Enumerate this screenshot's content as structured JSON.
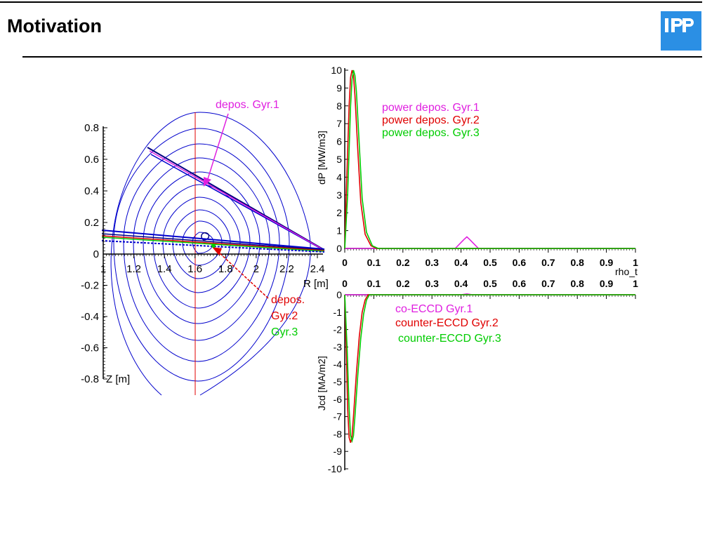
{
  "slide": {
    "title": "Motivation",
    "logo_text": "IPP",
    "accent_color": "#2b8fe4"
  },
  "chart_data": [
    {
      "type": "line",
      "panel": "cross-section",
      "xlabel": "R [m]",
      "ylabel": "Z [m]",
      "xlim": [
        1,
        2.4
      ],
      "ylim": [
        -0.8,
        0.8
      ],
      "x_ticks": [
        "1",
        "1.2",
        "1.4",
        "1.6",
        "1.8",
        "2",
        "2.2",
        "2.4"
      ],
      "y_ticks": [
        "0.8",
        "0.6",
        "0.4",
        "0.2",
        "0",
        "-0.2",
        "-0.4",
        "-0.6",
        "-0.8"
      ],
      "series": [
        {
          "name": "Gyr.1",
          "color": "#e020e0"
        },
        {
          "name": "Gyr.2",
          "color": "#e00000"
        },
        {
          "name": "Gyr.3",
          "color": "#00cc00"
        }
      ],
      "annotations": [
        {
          "text": "depos. Gyr.1",
          "color": "#e020e0"
        },
        {
          "text": "depos.",
          "color": "#e00000"
        },
        {
          "text": "Gyr.2",
          "color": "#e00000"
        },
        {
          "text": "Gyr.3",
          "color": "#00cc00"
        }
      ],
      "flux_surfaces_color": "#0000cc"
    },
    {
      "type": "line",
      "panel": "power-deposition",
      "xlabel": "rho_t",
      "ylabel": "dP [MW/m3]",
      "xlim": [
        0,
        1
      ],
      "ylim": [
        0,
        10
      ],
      "x_ticks": [
        "0",
        "0.1",
        "0.2",
        "0.3",
        "0.4",
        "0.5",
        "0.6",
        "0.7",
        "0.8",
        "0.9",
        "1"
      ],
      "y_ticks": [
        "10",
        "9",
        "8",
        "7",
        "6",
        "5",
        "4",
        "3",
        "2",
        "1",
        "0"
      ],
      "series": [
        {
          "name": "power depos. Gyr.1",
          "color": "#e020e0",
          "x": [
            0,
            0.38,
            0.41,
            0.42,
            0.43,
            0.46,
            1
          ],
          "y": [
            0,
            0,
            0.5,
            0.65,
            0.5,
            0,
            0
          ]
        },
        {
          "name": "power depos. Gyr.2",
          "color": "#e00000",
          "x": [
            0,
            0.005,
            0.015,
            0.02,
            0.025,
            0.03,
            0.035,
            0.045,
            0.055,
            0.07,
            0.09,
            0.11,
            1
          ],
          "y": [
            0,
            3,
            8,
            9.6,
            10,
            9.7,
            8.6,
            5.5,
            2.6,
            0.8,
            0.15,
            0,
            0
          ]
        },
        {
          "name": "power depos. Gyr.3",
          "color": "#00cc00",
          "x": [
            0,
            0.01,
            0.02,
            0.025,
            0.03,
            0.035,
            0.04,
            0.05,
            0.06,
            0.075,
            0.095,
            0.115,
            1
          ],
          "y": [
            0,
            3,
            8,
            9.5,
            10,
            9.7,
            8.8,
            5.8,
            2.8,
            0.9,
            0.15,
            0,
            0
          ]
        }
      ]
    },
    {
      "type": "line",
      "panel": "current-drive",
      "xlabel": "",
      "ylabel": "Jcd [MA/m2]",
      "xlim": [
        0,
        1
      ],
      "ylim": [
        -10,
        0
      ],
      "x_ticks": [
        "0",
        "0.1",
        "0.2",
        "0.3",
        "0.4",
        "0.5",
        "0.6",
        "0.7",
        "0.8",
        "0.9",
        "1"
      ],
      "y_ticks": [
        "0",
        "-1",
        "-2",
        "-3",
        "-4",
        "-5",
        "-6",
        "-7",
        "-8",
        "-9",
        "-10"
      ],
      "series": [
        {
          "name": "co-ECCD Gyr.1",
          "color": "#e020e0",
          "x": [
            0,
            0.4,
            0.42,
            0.44,
            1
          ],
          "y": [
            0,
            0,
            0.05,
            0,
            0
          ]
        },
        {
          "name": "counter-ECCD Gyr.2",
          "color": "#e00000",
          "x": [
            0,
            0.005,
            0.01,
            0.015,
            0.02,
            0.025,
            0.03,
            0.04,
            0.05,
            0.06,
            0.07,
            0.08,
            1
          ],
          "y": [
            0,
            -3,
            -6.5,
            -8.2,
            -8.5,
            -8.1,
            -7,
            -4.5,
            -2.4,
            -1,
            -0.3,
            0,
            0
          ]
        },
        {
          "name": "counter-ECCD Gyr.3",
          "color": "#00cc00",
          "x": [
            0,
            0.008,
            0.015,
            0.02,
            0.025,
            0.03,
            0.035,
            0.045,
            0.055,
            0.065,
            0.075,
            0.085,
            1
          ],
          "y": [
            0,
            -3,
            -6.5,
            -8.1,
            -8.4,
            -8.1,
            -7,
            -4.6,
            -2.5,
            -1.1,
            -0.3,
            0,
            0
          ]
        }
      ]
    }
  ]
}
